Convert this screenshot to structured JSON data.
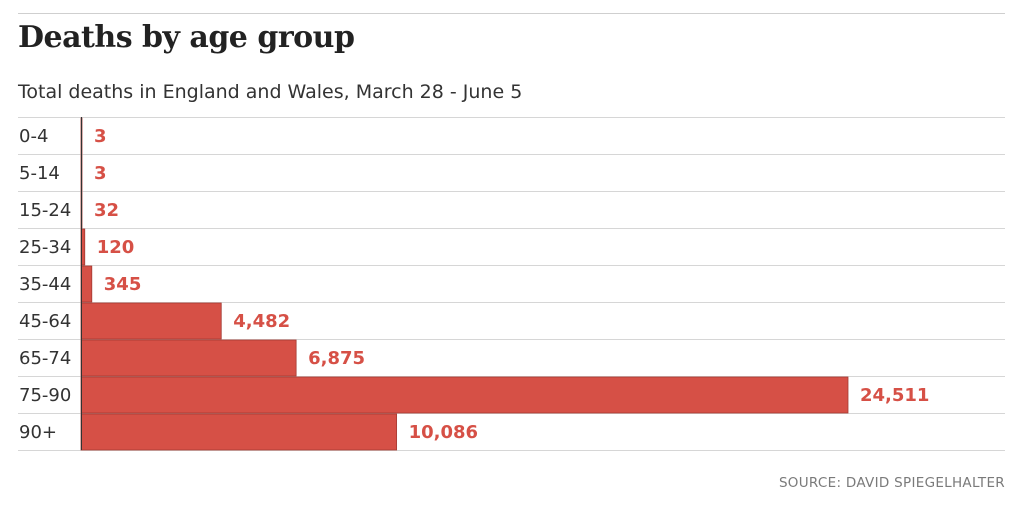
{
  "title": "Deaths by age group",
  "subtitle": "Total deaths in England and Wales, March 28 - June 5",
  "source": "SOURCE: DAVID SPIEGELHALTER",
  "colors": {
    "bar": "#d65046",
    "label": "#d65046",
    "axis": "#333333",
    "grid": "#d6d6d6"
  },
  "chart_data": {
    "type": "bar",
    "orientation": "horizontal",
    "categories": [
      "0-4",
      "5-14",
      "15-24",
      "25-34",
      "35-44",
      "45-64",
      "65-74",
      "75-90",
      "90+"
    ],
    "values": [
      3,
      3,
      32,
      120,
      345,
      4482,
      6875,
      24511,
      10086
    ],
    "value_labels": [
      "3",
      "3",
      "32",
      "120",
      "345",
      "4,482",
      "6,875",
      "24,511",
      "10,086"
    ],
    "title": "Deaths by age group",
    "subtitle": "Total deaths in England and Wales, March 28 - June 5",
    "xlim": [
      0,
      24511
    ],
    "grid": true
  }
}
